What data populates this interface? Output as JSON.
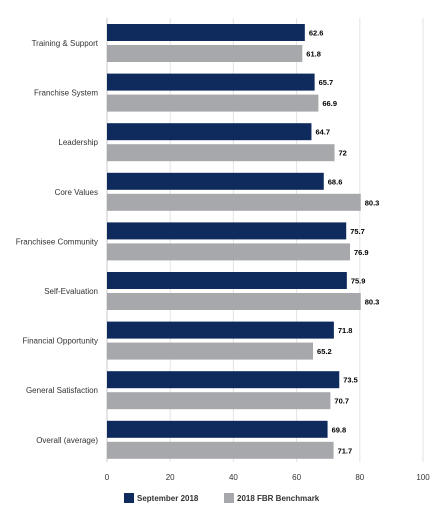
{
  "chart_data": {
    "type": "bar",
    "orientation": "horizontal",
    "categories": [
      "Training & Support",
      "Franchise System",
      "Leadership",
      "Core Values",
      "Franchisee Community",
      "Self-Evaluation",
      "Financial Opportunity",
      "General Satisfaction",
      "Overall (average)"
    ],
    "series": [
      {
        "name": "September 2018",
        "color": "#0f2a5c",
        "values": [
          62.6,
          65.7,
          64.7,
          68.6,
          75.7,
          75.9,
          71.8,
          73.5,
          69.8
        ]
      },
      {
        "name": "2018 FBR Benchmark",
        "color": "#a6a8ab",
        "values": [
          61.8,
          66.9,
          72,
          80.3,
          76.9,
          80.3,
          65.2,
          70.7,
          71.7
        ]
      }
    ],
    "value_labels": [
      [
        "62.6",
        "65.7",
        "64.7",
        "68.6",
        "75.7",
        "75.9",
        "71.8",
        "73.5",
        "69.8"
      ],
      [
        "61.8",
        "66.9",
        "72",
        "80.3",
        "76.9",
        "80.3",
        "65.2",
        "70.7",
        "71.7"
      ]
    ],
    "x_ticks": [
      "0",
      "20",
      "40",
      "60",
      "80",
      "100"
    ],
    "xlim": [
      0,
      100
    ],
    "grid": true,
    "legend_position": "bottom-center"
  }
}
